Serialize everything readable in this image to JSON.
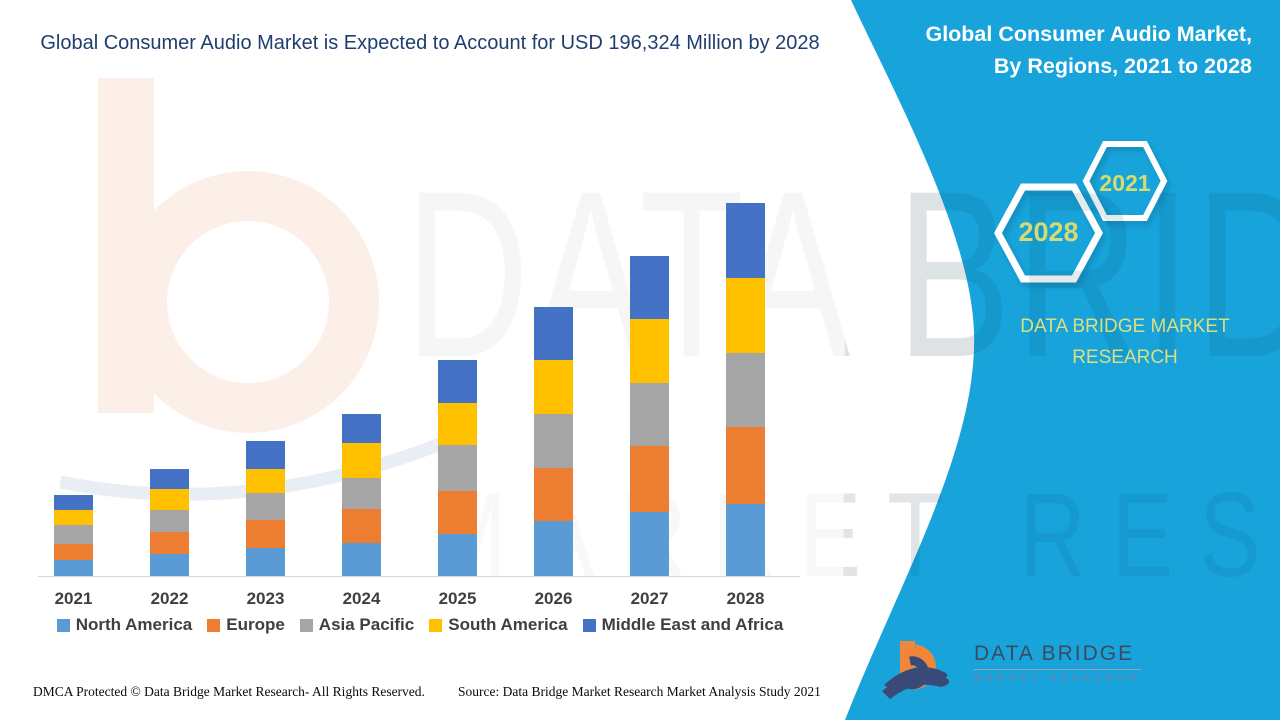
{
  "title": "Global Consumer Audio Market is Expected to Account for USD 196,324 Million by 2028",
  "panel": {
    "title": "Global Consumer Audio Market, By Regions, 2021 to 2028",
    "hex_small": "2021",
    "hex_large": "2028",
    "brand": "DATA BRIDGE MARKET RESEARCH",
    "background_color": "#18A4DB",
    "hex_text_color": "#D5DB70"
  },
  "watermark": {
    "brand": "DATA BRIDGE",
    "sub": "MARKET RESEARCH"
  },
  "logo": {
    "name": "DATA BRIDGE",
    "sub": "MARKET RESEARCH"
  },
  "footer": {
    "left": "DMCA Protected © Data Bridge Market Research- All Rights Reserved.",
    "right": "Source: Data Bridge Market Research Market Analysis Study 2021"
  },
  "chart_data": {
    "type": "bar",
    "stacked": true,
    "title": "Global Consumer Audio Market is Expected to Account for USD 196,324 Million by 2028",
    "unit": "USD Million",
    "xlabel": "",
    "ylabel": "",
    "y_axis": "hidden",
    "gridlines": false,
    "legend_position": "bottom",
    "ylim": [
      0,
      200000
    ],
    "categories": [
      "2021",
      "2022",
      "2023",
      "2024",
      "2025",
      "2026",
      "2027",
      "2028"
    ],
    "series": [
      {
        "name": "North America",
        "color": "#5B9BD5",
        "values": [
          8400,
          11700,
          14800,
          17200,
          22000,
          28900,
          33700,
          38024
        ]
      },
      {
        "name": "Europe",
        "color": "#ED7D31",
        "values": [
          8400,
          11400,
          14800,
          18300,
          22900,
          27700,
          34700,
          40300
        ]
      },
      {
        "name": "Asia Pacific",
        "color": "#A5A5A5",
        "values": [
          10000,
          11400,
          14000,
          16300,
          23800,
          28400,
          33000,
          39100
        ]
      },
      {
        "name": "South America",
        "color": "#FFC000",
        "values": [
          7900,
          11400,
          12800,
          17900,
          22300,
          28600,
          33700,
          39500
        ]
      },
      {
        "name": "Middle East and Africa",
        "color": "#4472C4",
        "values": [
          7900,
          10500,
          14400,
          15300,
          22600,
          28000,
          33000,
          39400
        ]
      }
    ],
    "totals": [
      42600,
      56400,
      70800,
      85000,
      113600,
      141600,
      168100,
      196324
    ],
    "annotation": "Total for 2028 = USD 196,324 Million"
  }
}
